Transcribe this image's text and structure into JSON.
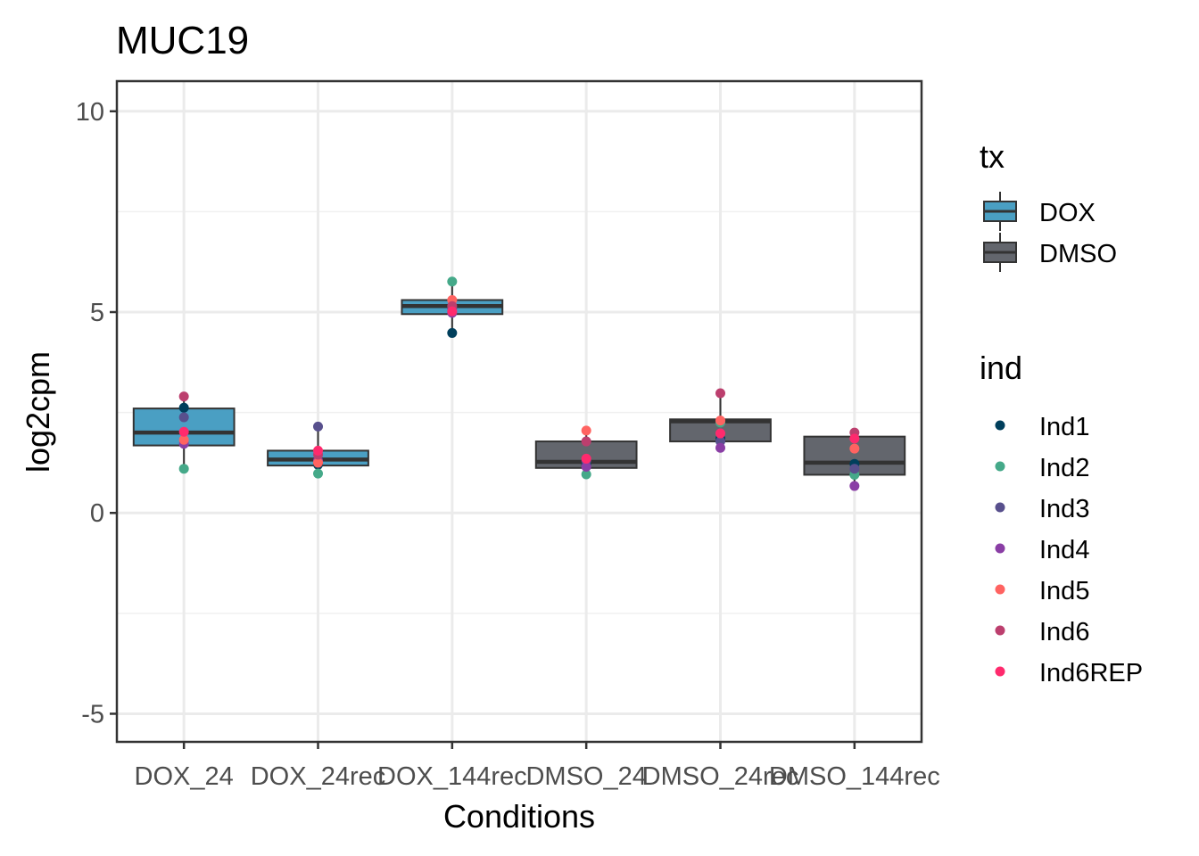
{
  "chart_data": {
    "type": "box",
    "title": "MUC19",
    "xlabel": "Conditions",
    "ylabel": "log2cpm",
    "ylim": [
      -5.7,
      10.75
    ],
    "yticks": [
      -5,
      0,
      5,
      10
    ],
    "ytick_labels": [
      "-5",
      "0",
      "5",
      "10"
    ],
    "grid": true,
    "categories": [
      "DOX_24",
      "DOX_24rec",
      "DOX_144rec",
      "DMSO_24",
      "DMSO_24rec",
      "DMSO_144rec"
    ],
    "boxes": [
      {
        "category": "DOX_24",
        "tx": "DOX",
        "q1": 1.68,
        "median": 2.0,
        "q3": 2.6,
        "whisker_low": 1.1,
        "whisker_high": 2.9
      },
      {
        "category": "DOX_24rec",
        "tx": "DOX",
        "q1": 1.18,
        "median": 1.33,
        "q3": 1.55,
        "whisker_low": 1.0,
        "whisker_high": 2.15
      },
      {
        "category": "DOX_144rec",
        "tx": "DOX",
        "q1": 4.95,
        "median": 5.15,
        "q3": 5.3,
        "whisker_low": 4.5,
        "whisker_high": 5.75
      },
      {
        "category": "DMSO_24",
        "tx": "DMSO",
        "q1": 1.12,
        "median": 1.27,
        "q3": 1.78,
        "whisker_low": 0.97,
        "whisker_high": 2.05
      },
      {
        "category": "DMSO_24rec",
        "tx": "DMSO",
        "q1": 1.78,
        "median": 2.28,
        "q3": 2.33,
        "whisker_low": 1.62,
        "whisker_high": 2.98
      },
      {
        "category": "DMSO_144rec",
        "tx": "DMSO",
        "q1": 0.95,
        "median": 1.25,
        "q3": 1.9,
        "whisker_low": 0.67,
        "whisker_high": 2.0
      }
    ],
    "points": [
      {
        "category": "DOX_24",
        "ind": "Ind1",
        "y": 2.62
      },
      {
        "category": "DOX_24",
        "ind": "Ind2",
        "y": 1.1
      },
      {
        "category": "DOX_24",
        "ind": "Ind3",
        "y": 2.38
      },
      {
        "category": "DOX_24",
        "ind": "Ind4",
        "y": 1.72
      },
      {
        "category": "DOX_24",
        "ind": "Ind5",
        "y": 1.82
      },
      {
        "category": "DOX_24",
        "ind": "Ind6",
        "y": 2.9
      },
      {
        "category": "DOX_24",
        "ind": "Ind6REP",
        "y": 2.02
      },
      {
        "category": "DOX_24rec",
        "ind": "Ind1",
        "y": 1.2
      },
      {
        "category": "DOX_24rec",
        "ind": "Ind2",
        "y": 0.98
      },
      {
        "category": "DOX_24rec",
        "ind": "Ind3",
        "y": 2.15
      },
      {
        "category": "DOX_24rec",
        "ind": "Ind4",
        "y": 1.3
      },
      {
        "category": "DOX_24rec",
        "ind": "Ind5",
        "y": 1.25
      },
      {
        "category": "DOX_24rec",
        "ind": "Ind6",
        "y": 1.45
      },
      {
        "category": "DOX_24rec",
        "ind": "Ind6REP",
        "y": 1.55
      },
      {
        "category": "DOX_144rec",
        "ind": "Ind1",
        "y": 4.48
      },
      {
        "category": "DOX_144rec",
        "ind": "Ind2",
        "y": 5.76
      },
      {
        "category": "DOX_144rec",
        "ind": "Ind3",
        "y": 5.1
      },
      {
        "category": "DOX_144rec",
        "ind": "Ind4",
        "y": 4.98
      },
      {
        "category": "DOX_144rec",
        "ind": "Ind5",
        "y": 5.3
      },
      {
        "category": "DOX_144rec",
        "ind": "Ind6",
        "y": 5.15
      },
      {
        "category": "DOX_144rec",
        "ind": "Ind6REP",
        "y": 5.02
      },
      {
        "category": "DMSO_24",
        "ind": "Ind1",
        "y": 1.2
      },
      {
        "category": "DMSO_24",
        "ind": "Ind2",
        "y": 0.96
      },
      {
        "category": "DMSO_24",
        "ind": "Ind3",
        "y": 1.3
      },
      {
        "category": "DMSO_24",
        "ind": "Ind4",
        "y": 1.15
      },
      {
        "category": "DMSO_24",
        "ind": "Ind5",
        "y": 2.05
      },
      {
        "category": "DMSO_24",
        "ind": "Ind6",
        "y": 1.78
      },
      {
        "category": "DMSO_24",
        "ind": "Ind6REP",
        "y": 1.35
      },
      {
        "category": "DMSO_24rec",
        "ind": "Ind1",
        "y": 1.85
      },
      {
        "category": "DMSO_24rec",
        "ind": "Ind2",
        "y": 2.25
      },
      {
        "category": "DMSO_24rec",
        "ind": "Ind3",
        "y": 1.78
      },
      {
        "category": "DMSO_24rec",
        "ind": "Ind4",
        "y": 1.62
      },
      {
        "category": "DMSO_24rec",
        "ind": "Ind5",
        "y": 2.3
      },
      {
        "category": "DMSO_24rec",
        "ind": "Ind6",
        "y": 2.98
      },
      {
        "category": "DMSO_24rec",
        "ind": "Ind6REP",
        "y": 1.98
      },
      {
        "category": "DMSO_144rec",
        "ind": "Ind1",
        "y": 1.22
      },
      {
        "category": "DMSO_144rec",
        "ind": "Ind2",
        "y": 0.95
      },
      {
        "category": "DMSO_144rec",
        "ind": "Ind3",
        "y": 1.1
      },
      {
        "category": "DMSO_144rec",
        "ind": "Ind4",
        "y": 0.67
      },
      {
        "category": "DMSO_144rec",
        "ind": "Ind5",
        "y": 1.6
      },
      {
        "category": "DMSO_144rec",
        "ind": "Ind6",
        "y": 2.0
      },
      {
        "category": "DMSO_144rec",
        "ind": "Ind6REP",
        "y": 1.85
      }
    ],
    "legend_tx": {
      "title": "tx",
      "entries": [
        {
          "name": "DOX",
          "color": "#4a9fc3"
        },
        {
          "name": "DMSO",
          "color": "#63666d"
        }
      ]
    },
    "legend_ind": {
      "title": "ind",
      "entries": [
        {
          "name": "Ind1",
          "color": "#003f5c"
        },
        {
          "name": "Ind2",
          "color": "#45a989"
        },
        {
          "name": "Ind3",
          "color": "#58508d"
        },
        {
          "name": "Ind4",
          "color": "#8a3ea5"
        },
        {
          "name": "Ind5",
          "color": "#ff6361"
        },
        {
          "name": "Ind6",
          "color": "#bc3f6e"
        },
        {
          "name": "Ind6REP",
          "color": "#ff2a6d"
        }
      ]
    },
    "legend_position": "right"
  }
}
